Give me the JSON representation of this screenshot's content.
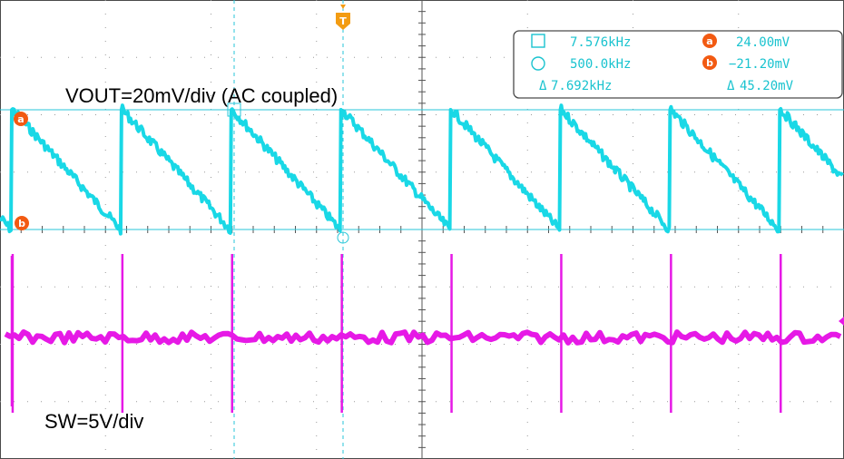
{
  "colors": {
    "vout": "#19d8e6",
    "sw": "#e619e6",
    "cursor": "#27c6d8",
    "trigger": "#f39c12",
    "cursor_marker": "#f25a12",
    "readout": "#19c3cf",
    "grid": "#9a9a9a",
    "border": "#4a4a4a"
  },
  "chart_data": {
    "type": "line",
    "title": "",
    "xlabel": "",
    "ylabel": "",
    "grid": true,
    "divisions": {
      "horizontal": 8,
      "vertical": 8
    },
    "series": [
      {
        "name": "VOUT=20mV/div (AC coupled)",
        "description": "sawtooth",
        "period_divisions": 1.04,
        "first_rise_division": 0.12,
        "high_level_mV": 24.0,
        "low_level_mV": -21.2
      },
      {
        "name": "SW=5V/div",
        "description": "narrow switching spikes",
        "baseline_offset_divisions": 0.0,
        "spike_period_divisions": 1.04,
        "first_spike_division": 0.12
      }
    ],
    "cursors": {
      "measurements": [
        {
          "symbol": "□",
          "value": "7.576kHz"
        },
        {
          "symbol": "○",
          "value": "500.0kHz"
        },
        {
          "symbol": "Δ",
          "value": "7.692kHz"
        }
      ],
      "levels": [
        {
          "symbol": "a",
          "value": "24.00mV"
        },
        {
          "symbol": "b",
          "value": "−21.20mV"
        },
        {
          "symbol": "Δ",
          "value": "45.20mV"
        }
      ]
    },
    "trigger_marker": "T"
  }
}
